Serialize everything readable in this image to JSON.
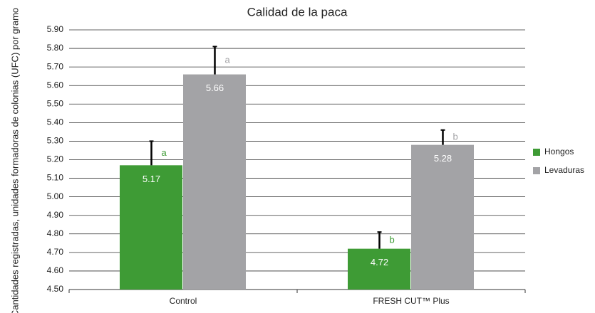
{
  "chart_data": {
    "type": "bar",
    "title": "Calidad de la paca",
    "y_label": "Cantidades registradas, unidades formadoras de colonias (UFC) por gramo",
    "categories": [
      "Control",
      "FRESH CUT™ Plus"
    ],
    "series": [
      {
        "name": "Hongos",
        "color": "#3e9b35",
        "values": [
          5.17,
          4.72
        ],
        "errors": [
          0.13,
          0.09
        ],
        "letters": [
          "a",
          "b"
        ]
      },
      {
        "name": "Levaduras",
        "color": "#a3a3a6",
        "values": [
          5.66,
          5.28
        ],
        "errors": [
          0.15,
          0.08
        ],
        "letters": [
          "a",
          "b"
        ]
      }
    ],
    "ylim": [
      4.5,
      5.9
    ],
    "yticks": [
      {
        "value": 4.5,
        "label": "4.50"
      },
      {
        "value": 4.6,
        "label": "4.60"
      },
      {
        "value": 4.7,
        "label": "4.70"
      },
      {
        "value": 4.8,
        "label": "4.80"
      },
      {
        "value": 4.9,
        "label": "4.90"
      },
      {
        "value": 5.0,
        "label": "5.00"
      },
      {
        "value": 5.1,
        "label": "5.10"
      },
      {
        "value": 5.2,
        "label": "5.20"
      },
      {
        "value": 5.3,
        "label": "5.30"
      },
      {
        "value": 5.4,
        "label": "5.40"
      },
      {
        "value": 5.5,
        "label": "5.50"
      },
      {
        "value": 5.6,
        "label": "5.60"
      },
      {
        "value": 5.7,
        "label": "5.70"
      },
      {
        "value": 5.8,
        "label": "5.80"
      },
      {
        "value": 5.9,
        "label": "5.90"
      }
    ],
    "grid": true,
    "legend": "right"
  }
}
